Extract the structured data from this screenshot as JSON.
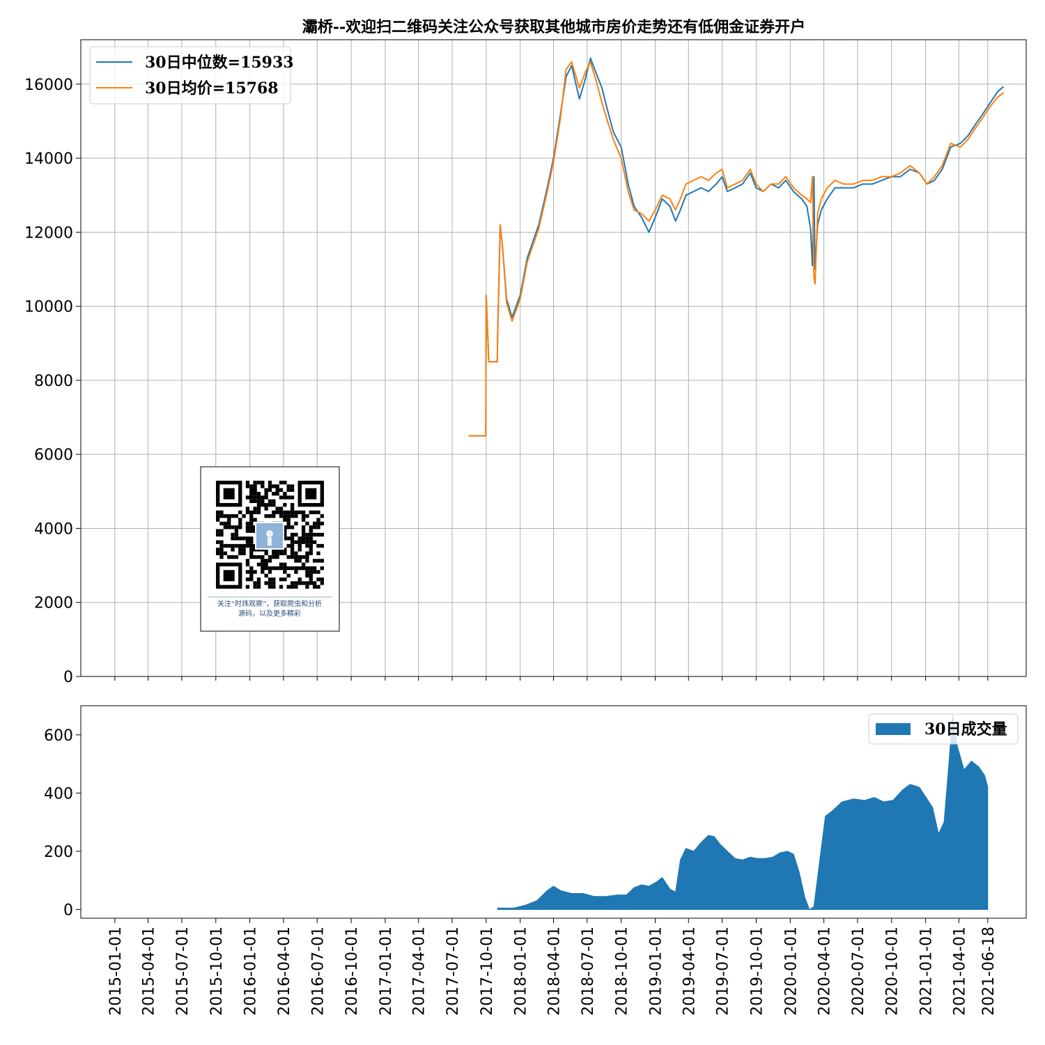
{
  "title": "灞桥--欢迎扫二维码关注公众号获取其他城市房价走势还有低佣金证券开户",
  "qr_caption": [
    "关注“时炜观察”，获取爬虫和分析",
    "源码，以及更多精彩"
  ],
  "colors": {
    "median": "#1f77b4",
    "mean": "#ff7f0e",
    "volume": "#1f77b4",
    "grid": "#b0b0b0"
  },
  "chart_data": [
    {
      "type": "line",
      "grid": true,
      "legend_position": "top-left",
      "xlim": [
        "2014-10-01",
        "2021-09-30"
      ],
      "ylim": [
        0,
        17200
      ],
      "yticks": [
        0,
        2000,
        4000,
        6000,
        8000,
        10000,
        12000,
        14000,
        16000
      ],
      "series": [
        {
          "name": "30日中位数=15933",
          "color": "#1f77b4",
          "points": [
            [
              "2017-08-15",
              6500
            ],
            [
              "2017-09-30",
              6500
            ],
            [
              "2017-10-01",
              10300
            ],
            [
              "2017-10-08",
              8500
            ],
            [
              "2017-10-31",
              8500
            ],
            [
              "2017-11-01",
              9200
            ],
            [
              "2017-11-08",
              12200
            ],
            [
              "2017-11-15",
              11500
            ],
            [
              "2017-11-25",
              10200
            ],
            [
              "2017-12-10",
              9700
            ],
            [
              "2018-01-01",
              10300
            ],
            [
              "2018-01-20",
              11300
            ],
            [
              "2018-02-20",
              12200
            ],
            [
              "2018-03-15",
              13200
            ],
            [
              "2018-04-01",
              14000
            ],
            [
              "2018-04-20",
              15200
            ],
            [
              "2018-05-05",
              16200
            ],
            [
              "2018-05-20",
              16500
            ],
            [
              "2018-06-10",
              15600
            ],
            [
              "2018-06-25",
              16100
            ],
            [
              "2018-07-10",
              16700
            ],
            [
              "2018-07-25",
              16300
            ],
            [
              "2018-08-10",
              15900
            ],
            [
              "2018-08-25",
              15300
            ],
            [
              "2018-09-10",
              14700
            ],
            [
              "2018-10-01",
              14300
            ],
            [
              "2018-10-20",
              13300
            ],
            [
              "2018-11-05",
              12700
            ],
            [
              "2018-11-25",
              12400
            ],
            [
              "2018-12-15",
              12000
            ],
            [
              "2019-01-01",
              12400
            ],
            [
              "2019-01-20",
              12900
            ],
            [
              "2019-02-10",
              12700
            ],
            [
              "2019-02-25",
              12300
            ],
            [
              "2019-03-10",
              12600
            ],
            [
              "2019-03-25",
              13000
            ],
            [
              "2019-04-15",
              13100
            ],
            [
              "2019-05-05",
              13200
            ],
            [
              "2019-05-25",
              13100
            ],
            [
              "2019-06-15",
              13300
            ],
            [
              "2019-07-01",
              13500
            ],
            [
              "2019-07-15",
              13100
            ],
            [
              "2019-08-05",
              13200
            ],
            [
              "2019-08-25",
              13300
            ],
            [
              "2019-09-15",
              13600
            ],
            [
              "2019-10-01",
              13200
            ],
            [
              "2019-10-20",
              13100
            ],
            [
              "2019-11-10",
              13300
            ],
            [
              "2019-12-01",
              13200
            ],
            [
              "2019-12-20",
              13400
            ],
            [
              "2020-01-10",
              13100
            ],
            [
              "2020-02-01",
              12900
            ],
            [
              "2020-02-15",
              12700
            ],
            [
              "2020-02-25",
              12100
            ],
            [
              "2020-03-01",
              11100
            ],
            [
              "2020-03-05",
              13500
            ],
            [
              "2020-03-08",
              11000
            ],
            [
              "2020-03-15",
              12200
            ],
            [
              "2020-03-25",
              12600
            ],
            [
              "2020-04-10",
              12900
            ],
            [
              "2020-05-01",
              13200
            ],
            [
              "2020-05-25",
              13200
            ],
            [
              "2020-06-20",
              13200
            ],
            [
              "2020-07-15",
              13300
            ],
            [
              "2020-08-10",
              13300
            ],
            [
              "2020-09-05",
              13400
            ],
            [
              "2020-10-01",
              13500
            ],
            [
              "2020-10-25",
              13500
            ],
            [
              "2020-11-20",
              13700
            ],
            [
              "2020-12-15",
              13600
            ],
            [
              "2021-01-05",
              13300
            ],
            [
              "2021-01-25",
              13400
            ],
            [
              "2021-02-15",
              13700
            ],
            [
              "2021-03-10",
              14300
            ],
            [
              "2021-04-05",
              14400
            ],
            [
              "2021-04-25",
              14600
            ],
            [
              "2021-05-15",
              14900
            ],
            [
              "2021-06-05",
              15200
            ],
            [
              "2021-06-25",
              15500
            ],
            [
              "2021-07-15",
              15800
            ],
            [
              "2021-07-31",
              15933
            ]
          ]
        },
        {
          "name": "30日均价=15768",
          "color": "#ff7f0e",
          "points": [
            [
              "2017-08-15",
              6500
            ],
            [
              "2017-09-30",
              6500
            ],
            [
              "2017-10-01",
              10300
            ],
            [
              "2017-10-08",
              8500
            ],
            [
              "2017-10-31",
              8500
            ],
            [
              "2017-11-01",
              9200
            ],
            [
              "2017-11-08",
              12200
            ],
            [
              "2017-11-15",
              11500
            ],
            [
              "2017-11-25",
              10100
            ],
            [
              "2017-12-10",
              9600
            ],
            [
              "2018-01-01",
              10200
            ],
            [
              "2018-01-20",
              11200
            ],
            [
              "2018-02-20",
              12100
            ],
            [
              "2018-03-15",
              13100
            ],
            [
              "2018-04-01",
              13900
            ],
            [
              "2018-04-20",
              15100
            ],
            [
              "2018-05-05",
              16400
            ],
            [
              "2018-05-20",
              16600
            ],
            [
              "2018-06-10",
              15900
            ],
            [
              "2018-06-25",
              16300
            ],
            [
              "2018-07-10",
              16600
            ],
            [
              "2018-07-25",
              16100
            ],
            [
              "2018-08-10",
              15500
            ],
            [
              "2018-08-25",
              15000
            ],
            [
              "2018-09-10",
              14500
            ],
            [
              "2018-10-01",
              14000
            ],
            [
              "2018-10-20",
              13100
            ],
            [
              "2018-11-05",
              12600
            ],
            [
              "2018-11-25",
              12500
            ],
            [
              "2018-12-15",
              12300
            ],
            [
              "2019-01-01",
              12600
            ],
            [
              "2019-01-20",
              13000
            ],
            [
              "2019-02-10",
              12900
            ],
            [
              "2019-02-25",
              12600
            ],
            [
              "2019-03-10",
              12900
            ],
            [
              "2019-03-25",
              13300
            ],
            [
              "2019-04-15",
              13400
            ],
            [
              "2019-05-05",
              13500
            ],
            [
              "2019-05-25",
              13400
            ],
            [
              "2019-06-15",
              13600
            ],
            [
              "2019-07-01",
              13700
            ],
            [
              "2019-07-15",
              13200
            ],
            [
              "2019-08-05",
              13300
            ],
            [
              "2019-08-25",
              13400
            ],
            [
              "2019-09-15",
              13700
            ],
            [
              "2019-10-01",
              13300
            ],
            [
              "2019-10-20",
              13100
            ],
            [
              "2019-11-10",
              13300
            ],
            [
              "2019-12-01",
              13300
            ],
            [
              "2019-12-20",
              13500
            ],
            [
              "2020-01-10",
              13200
            ],
            [
              "2020-02-01",
              13000
            ],
            [
              "2020-02-15",
              12900
            ],
            [
              "2020-02-25",
              12800
            ],
            [
              "2020-03-01",
              13500
            ],
            [
              "2020-03-05",
              10800
            ],
            [
              "2020-03-08",
              10600
            ],
            [
              "2020-03-15",
              12500
            ],
            [
              "2020-03-25",
              12900
            ],
            [
              "2020-04-10",
              13200
            ],
            [
              "2020-05-01",
              13400
            ],
            [
              "2020-05-25",
              13300
            ],
            [
              "2020-06-20",
              13300
            ],
            [
              "2020-07-15",
              13400
            ],
            [
              "2020-08-10",
              13400
            ],
            [
              "2020-09-05",
              13500
            ],
            [
              "2020-10-01",
              13500
            ],
            [
              "2020-10-25",
              13600
            ],
            [
              "2020-11-20",
              13800
            ],
            [
              "2020-12-15",
              13600
            ],
            [
              "2021-01-05",
              13300
            ],
            [
              "2021-01-25",
              13500
            ],
            [
              "2021-02-15",
              13800
            ],
            [
              "2021-03-10",
              14400
            ],
            [
              "2021-04-05",
              14300
            ],
            [
              "2021-04-25",
              14500
            ],
            [
              "2021-05-15",
              14800
            ],
            [
              "2021-06-05",
              15100
            ],
            [
              "2021-06-25",
              15400
            ],
            [
              "2021-07-15",
              15650
            ],
            [
              "2021-07-31",
              15768
            ]
          ]
        }
      ]
    },
    {
      "type": "area",
      "grid": false,
      "legend_position": "top-right",
      "xlim": [
        "2014-10-01",
        "2021-09-30"
      ],
      "ylim": [
        -30,
        700
      ],
      "yticks": [
        0,
        200,
        400,
        600
      ],
      "xticks": [
        "2015-01-01",
        "2015-04-01",
        "2015-07-01",
        "2015-10-01",
        "2016-01-01",
        "2016-04-01",
        "2016-07-01",
        "2016-10-01",
        "2017-01-01",
        "2017-04-01",
        "2017-07-01",
        "2017-10-01",
        "2018-01-01",
        "2018-04-01",
        "2018-07-01",
        "2018-10-01",
        "2019-01-01",
        "2019-04-01",
        "2019-07-01",
        "2019-10-01",
        "2020-01-01",
        "2020-04-01",
        "2020-07-01",
        "2020-10-01",
        "2021-01-01",
        "2021-04-01",
        "2021-06-18"
      ],
      "series": [
        {
          "name": "30日成交量",
          "color": "#1f77b4",
          "points": [
            [
              "2017-11-01",
              5
            ],
            [
              "2017-12-15",
              5
            ],
            [
              "2018-01-15",
              15
            ],
            [
              "2018-02-15",
              30
            ],
            [
              "2018-03-15",
              65
            ],
            [
              "2018-04-01",
              80
            ],
            [
              "2018-04-20",
              65
            ],
            [
              "2018-05-20",
              55
            ],
            [
              "2018-06-20",
              55
            ],
            [
              "2018-07-20",
              45
            ],
            [
              "2018-08-20",
              45
            ],
            [
              "2018-09-20",
              50
            ],
            [
              "2018-10-15",
              50
            ],
            [
              "2018-11-05",
              75
            ],
            [
              "2018-11-25",
              85
            ],
            [
              "2018-12-15",
              80
            ],
            [
              "2019-01-05",
              95
            ],
            [
              "2019-01-20",
              110
            ],
            [
              "2019-02-10",
              70
            ],
            [
              "2019-02-25",
              60
            ],
            [
              "2019-03-10",
              170
            ],
            [
              "2019-03-25",
              210
            ],
            [
              "2019-04-15",
              200
            ],
            [
              "2019-05-05",
              230
            ],
            [
              "2019-05-25",
              255
            ],
            [
              "2019-06-10",
              250
            ],
            [
              "2019-06-25",
              225
            ],
            [
              "2019-07-15",
              200
            ],
            [
              "2019-08-05",
              175
            ],
            [
              "2019-08-25",
              170
            ],
            [
              "2019-09-15",
              180
            ],
            [
              "2019-10-05",
              175
            ],
            [
              "2019-10-25",
              175
            ],
            [
              "2019-11-15",
              180
            ],
            [
              "2019-12-05",
              195
            ],
            [
              "2019-12-25",
              200
            ],
            [
              "2020-01-10",
              190
            ],
            [
              "2020-01-25",
              130
            ],
            [
              "2020-02-10",
              40
            ],
            [
              "2020-02-22",
              0
            ],
            [
              "2020-03-05",
              10
            ],
            [
              "2020-03-20",
              160
            ],
            [
              "2020-04-05",
              320
            ],
            [
              "2020-04-25",
              340
            ],
            [
              "2020-05-20",
              370
            ],
            [
              "2020-06-20",
              380
            ],
            [
              "2020-07-20",
              375
            ],
            [
              "2020-08-15",
              385
            ],
            [
              "2020-09-10",
              370
            ],
            [
              "2020-10-05",
              375
            ],
            [
              "2020-10-30",
              410
            ],
            [
              "2020-11-20",
              430
            ],
            [
              "2020-12-15",
              420
            ],
            [
              "2021-01-05",
              380
            ],
            [
              "2021-01-20",
              350
            ],
            [
              "2021-02-05",
              260
            ],
            [
              "2021-02-20",
              300
            ],
            [
              "2021-03-05",
              500
            ],
            [
              "2021-03-15",
              670
            ],
            [
              "2021-03-28",
              560
            ],
            [
              "2021-04-15",
              480
            ],
            [
              "2021-05-05",
              510
            ],
            [
              "2021-05-25",
              490
            ],
            [
              "2021-06-10",
              460
            ],
            [
              "2021-06-18",
              420
            ]
          ]
        }
      ]
    }
  ]
}
